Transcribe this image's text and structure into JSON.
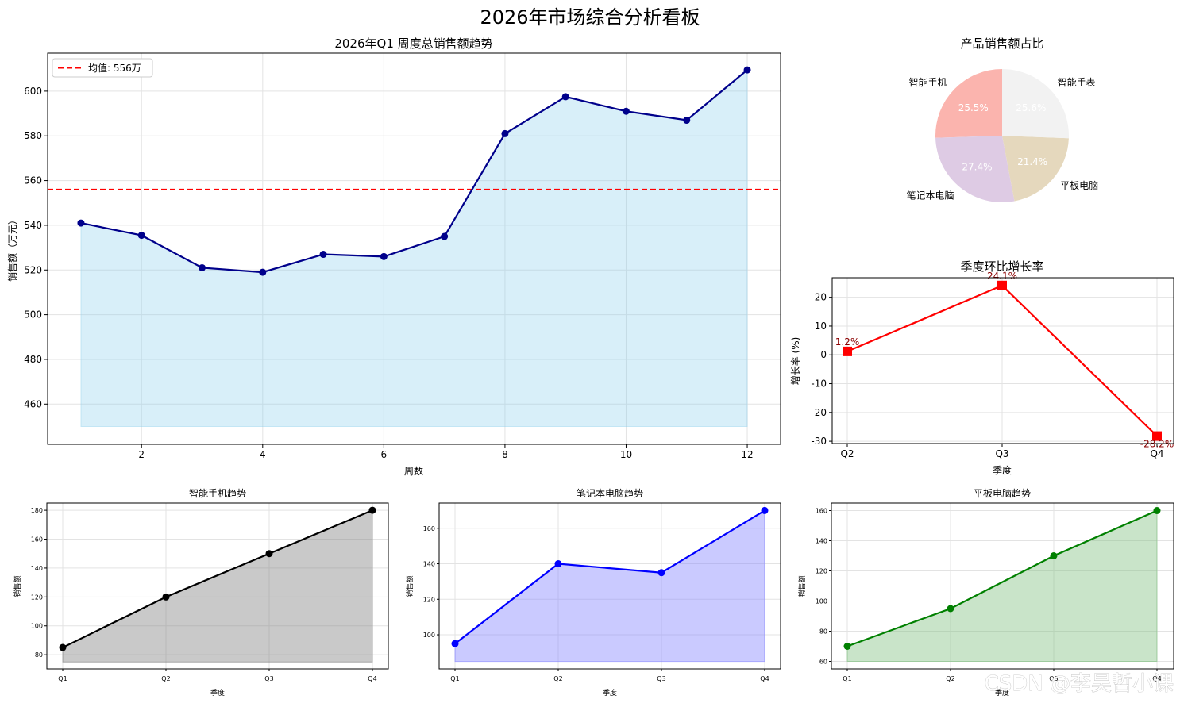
{
  "dashboard_title": "2026年市场综合分析看板",
  "watermark": "CSDN @李昊哲小课",
  "colors": {
    "main_line": "#00008b",
    "main_fill": "#87ceeb",
    "mean_line": "#ff0000",
    "growth_line": "#ff0000",
    "growth_label": "#8b0000",
    "phone_line": "#000000",
    "phone_fill": "#7f7f7f",
    "laptop_line": "#0000ff",
    "laptop_fill": "#8080ff",
    "tablet_line": "#008000",
    "tablet_fill": "#7fbf7f",
    "pie": [
      "#fbb4ae",
      "#decbe4",
      "#e5d8bd",
      "#f2f2f2"
    ]
  },
  "chart_data": [
    {
      "id": "weekly",
      "type": "line",
      "title": "2026年Q1 周度总销售额趋势",
      "xlabel": "周数",
      "ylabel": "销售额（万元）",
      "x": [
        1,
        2,
        3,
        4,
        5,
        6,
        7,
        8,
        9,
        10,
        11,
        12
      ],
      "values": [
        541,
        535.5,
        521,
        519,
        527,
        526,
        535,
        581,
        597.5,
        591,
        587,
        609.5
      ],
      "fill_base": 450,
      "xlim": [
        0.45,
        12.55
      ],
      "ylim": [
        442,
        617
      ],
      "xticks": [
        2,
        4,
        6,
        8,
        10,
        12
      ],
      "yticks": [
        460,
        480,
        500,
        520,
        540,
        560,
        580,
        600
      ],
      "mean": 556,
      "legend": "均值: 556万",
      "legend_position": "top-left",
      "grid": true
    },
    {
      "id": "share",
      "type": "pie",
      "title": "产品销售额占比",
      "labels": [
        "智能手机",
        "笔记本电脑",
        "平板电脑",
        "智能手表"
      ],
      "values": [
        25.5,
        27.4,
        21.4,
        25.6
      ],
      "pct_labels": [
        "25.5%",
        "27.4%",
        "21.4%",
        "25.6%"
      ]
    },
    {
      "id": "growth",
      "type": "line",
      "title": "季度环比增长率",
      "xlabel": "季度",
      "ylabel": "增长率 (%)",
      "categories": [
        "Q2",
        "Q3",
        "Q4"
      ],
      "values": [
        1.2,
        24.1,
        -28.2
      ],
      "point_labels": [
        "1.2%",
        "24.1%",
        "-28.2%"
      ],
      "ylim": [
        -30.8,
        26.8
      ],
      "yticks": [
        20,
        10,
        0,
        -10,
        -20,
        -30
      ],
      "grid": true
    },
    {
      "id": "phone",
      "type": "area",
      "title": "智能手机趋势",
      "xlabel": "季度",
      "ylabel": "销售额",
      "categories": [
        "Q1",
        "Q2",
        "Q3",
        "Q4"
      ],
      "values": [
        85,
        120,
        150,
        180
      ],
      "fill_base": 75,
      "ylim": [
        70.2,
        185
      ],
      "yticks": [
        80,
        100,
        120,
        140,
        160,
        180
      ],
      "grid": true
    },
    {
      "id": "laptop",
      "type": "area",
      "title": "笔记本电脑趋势",
      "xlabel": "季度",
      "ylabel": "销售额",
      "categories": [
        "Q1",
        "Q2",
        "Q3",
        "Q4"
      ],
      "values": [
        95,
        140,
        135,
        170
      ],
      "fill_base": 85,
      "ylim": [
        80.8,
        174.2
      ],
      "yticks": [
        100,
        120,
        140,
        160
      ],
      "grid": true
    },
    {
      "id": "tablet",
      "type": "area",
      "title": "平板电脑趋势",
      "xlabel": "季度",
      "ylabel": "销售额",
      "categories": [
        "Q1",
        "Q2",
        "Q3",
        "Q4"
      ],
      "values": [
        70,
        95,
        130,
        160
      ],
      "fill_base": 60,
      "ylim": [
        55,
        165
      ],
      "yticks": [
        60,
        80,
        100,
        120,
        140,
        160
      ],
      "grid": true
    }
  ]
}
